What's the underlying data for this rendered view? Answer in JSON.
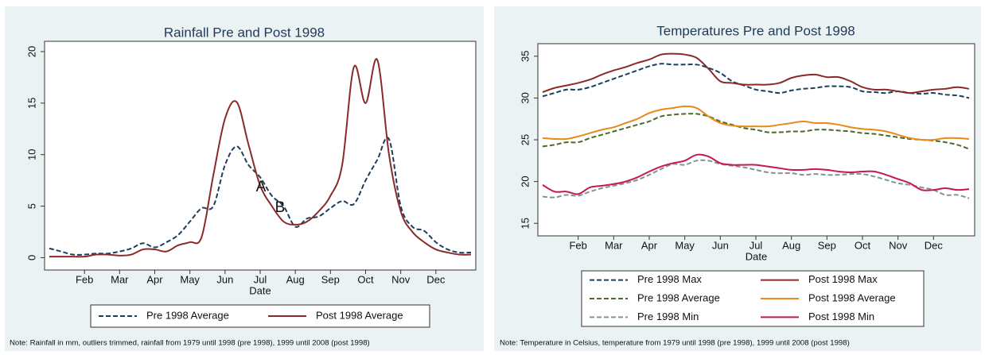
{
  "chart_data": [
    {
      "type": "line",
      "title": "Rainfall Pre and Post 1998",
      "x_label": "Date",
      "note": "Note: Rainfall in mm, outliers trimmed, rainfall from 1979 until 1998 (pre 1998), 1999 until 2008 (post 1998)",
      "annotations": [
        "A",
        "B"
      ],
      "categories": [
        null,
        null,
        null,
        "Feb",
        null,
        null,
        "Mar",
        null,
        null,
        "Apr",
        null,
        null,
        "May",
        null,
        null,
        "Jun",
        null,
        null,
        "Jul",
        null,
        null,
        "Aug",
        null,
        null,
        "Sep",
        null,
        null,
        "Oct",
        null,
        null,
        "Nov",
        null,
        null,
        "Dec",
        null,
        null,
        null
      ],
      "ylim": [
        -1.2,
        21
      ],
      "yticks": [
        0,
        5,
        10,
        15,
        20
      ],
      "series": [
        {
          "name": "Pre 1998 Average",
          "color": "#1f3d5c",
          "dash": true,
          "values": [
            0.9,
            0.6,
            0.3,
            0.3,
            0.4,
            0.4,
            0.6,
            0.9,
            1.4,
            1.0,
            1.5,
            2.2,
            3.5,
            4.8,
            5.0,
            9.0,
            10.8,
            9.0,
            7.8,
            6.0,
            5.0,
            3.0,
            3.8,
            4.0,
            4.8,
            5.5,
            5.2,
            7.5,
            9.5,
            11.5,
            5.0,
            3.0,
            2.6,
            1.5,
            0.8,
            0.5,
            0.5
          ]
        },
        {
          "name": "Post 1998 Average",
          "color": "#8b2a2a",
          "dash": false,
          "values": [
            0.1,
            0.1,
            0.1,
            0.1,
            0.3,
            0.3,
            0.2,
            0.3,
            0.8,
            0.8,
            0.6,
            1.2,
            1.5,
            2.0,
            8.0,
            13.5,
            15.1,
            11.0,
            7.0,
            5.0,
            3.5,
            3.2,
            3.5,
            4.5,
            6.0,
            9.0,
            18.5,
            15.0,
            19.2,
            10.0,
            4.5,
            2.5,
            1.5,
            0.8,
            0.5,
            0.3,
            0.3
          ]
        }
      ]
    },
    {
      "type": "line",
      "title": "Temperatures Pre and Post 1998",
      "x_label": "Date",
      "note": "Note: Temperature in Celsius, temperature from 1979 until 1998 (pre 1998), 1999 until 2008 (post 1998)",
      "categories": [
        null,
        null,
        null,
        "Feb",
        null,
        null,
        "Mar",
        null,
        null,
        "Apr",
        null,
        null,
        "May",
        null,
        null,
        "Jun",
        null,
        null,
        "Jul",
        null,
        null,
        "Aug",
        null,
        null,
        "Sep",
        null,
        null,
        "Oct",
        null,
        null,
        "Nov",
        null,
        null,
        "Dec",
        null,
        null,
        null
      ],
      "ylim": [
        13.5,
        36.5
      ],
      "yticks": [
        15,
        20,
        25,
        30,
        35
      ],
      "series": [
        {
          "name": "Pre 1998 Max",
          "color": "#1f3d5c",
          "dash": true,
          "values": [
            30.2,
            30.6,
            31.0,
            31.0,
            31.3,
            31.8,
            32.3,
            32.8,
            33.3,
            33.8,
            34.1,
            34.0,
            34.0,
            34.0,
            33.6,
            33.0,
            32.0,
            31.5,
            31.0,
            30.8,
            30.6,
            30.9,
            31.1,
            31.2,
            31.4,
            31.4,
            31.3,
            30.8,
            30.7,
            30.6,
            30.8,
            30.6,
            30.5,
            30.6,
            30.4,
            30.3,
            30.0
          ]
        },
        {
          "name": "Post 1998 Max",
          "color": "#8b2a2a",
          "dash": false,
          "values": [
            30.7,
            31.2,
            31.5,
            31.8,
            32.2,
            32.8,
            33.3,
            33.7,
            34.2,
            34.6,
            35.2,
            35.3,
            35.2,
            34.8,
            33.5,
            32.0,
            31.8,
            31.6,
            31.6,
            31.6,
            31.8,
            32.4,
            32.7,
            32.8,
            32.5,
            32.5,
            32.0,
            31.3,
            31.0,
            31.0,
            30.8,
            30.6,
            30.8,
            31.0,
            31.1,
            31.3,
            31.1
          ]
        },
        {
          "name": "Pre 1998 Average",
          "color": "#4a6b2a",
          "dash": true,
          "values": [
            24.2,
            24.4,
            24.7,
            24.7,
            25.2,
            25.6,
            26.0,
            26.4,
            26.8,
            27.2,
            27.8,
            28.0,
            28.1,
            28.1,
            27.8,
            27.2,
            26.8,
            26.4,
            26.2,
            25.9,
            25.9,
            26.0,
            26.0,
            26.2,
            26.2,
            26.1,
            26.0,
            25.8,
            25.7,
            25.5,
            25.3,
            25.1,
            25.0,
            24.9,
            24.7,
            24.4,
            23.9
          ]
        },
        {
          "name": "Post 1998 Average",
          "color": "#e8891a",
          "dash": false,
          "values": [
            25.2,
            25.1,
            25.1,
            25.4,
            25.8,
            26.2,
            26.5,
            27.0,
            27.5,
            28.2,
            28.6,
            28.8,
            29.0,
            28.8,
            27.8,
            27.0,
            26.7,
            26.6,
            26.6,
            26.6,
            26.8,
            27.0,
            27.2,
            27.0,
            27.0,
            26.8,
            26.5,
            26.3,
            26.2,
            26.0,
            25.6,
            25.2,
            25.0,
            25.0,
            25.2,
            25.2,
            25.1
          ]
        },
        {
          "name": "Pre 1998 Min",
          "color": "#7f9590",
          "dash": true,
          "values": [
            18.2,
            18.1,
            18.4,
            18.3,
            18.8,
            19.2,
            19.5,
            19.8,
            20.2,
            20.8,
            21.5,
            22.1,
            22.0,
            22.5,
            22.5,
            22.1,
            21.9,
            21.7,
            21.4,
            21.1,
            21.0,
            21.0,
            20.8,
            20.9,
            20.8,
            20.8,
            20.9,
            20.9,
            20.6,
            20.2,
            19.8,
            19.6,
            19.3,
            19.0,
            18.4,
            18.4,
            18.0
          ]
        },
        {
          "name": "Post 1998 Min",
          "color": "#c8184a",
          "dash": false,
          "values": [
            19.6,
            18.8,
            18.8,
            18.5,
            19.3,
            19.5,
            19.7,
            20.0,
            20.5,
            21.2,
            21.8,
            22.2,
            22.5,
            23.2,
            23.0,
            22.2,
            22.0,
            22.0,
            22.0,
            21.8,
            21.6,
            21.4,
            21.4,
            21.5,
            21.4,
            21.2,
            21.1,
            21.2,
            21.2,
            20.8,
            20.3,
            19.8,
            19.0,
            19.0,
            19.2,
            19.0,
            19.1
          ]
        }
      ]
    }
  ]
}
